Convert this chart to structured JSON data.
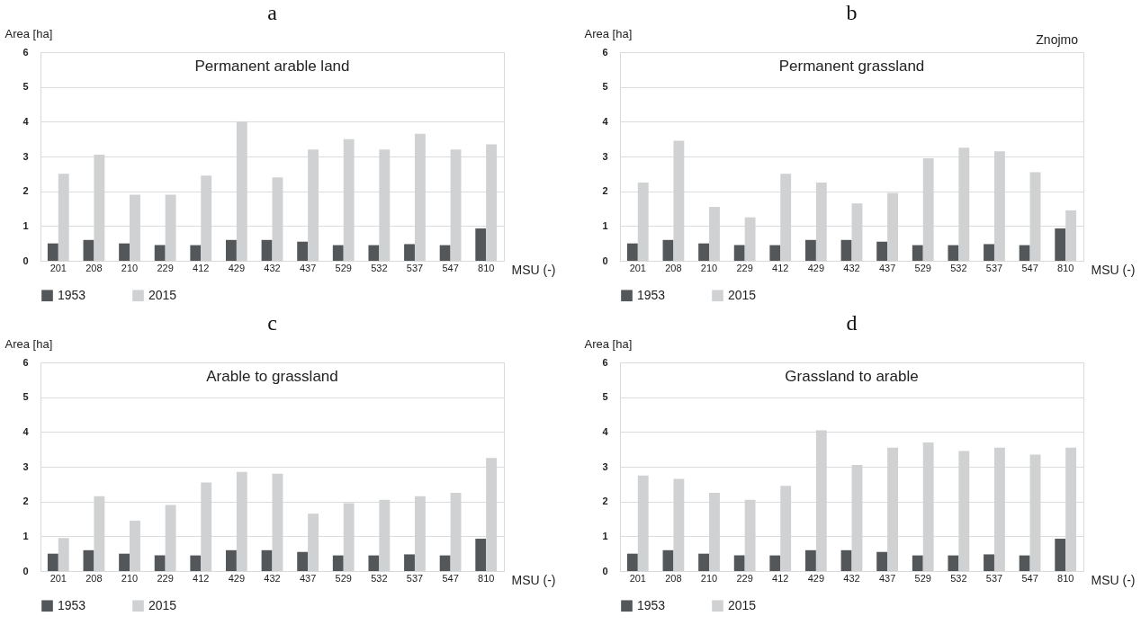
{
  "chart_data": [
    {
      "type": "bar",
      "title": "a",
      "subtitle": "Permanent arable land",
      "xlabel": "MSU (-)",
      "ylabel": "Area [ha]",
      "categories": [
        "201",
        "208",
        "210",
        "229",
        "412",
        "429",
        "432",
        "437",
        "529",
        "532",
        "537",
        "547",
        "810"
      ],
      "ylim": [
        0,
        6
      ],
      "yticks": [
        0,
        1,
        2,
        3,
        4,
        5,
        6
      ],
      "grid": "y",
      "legend": "bottom",
      "series": [
        {
          "name": "1953",
          "color": "#53575a",
          "values": [
            0.5,
            0.6,
            0.5,
            0.45,
            0.45,
            0.6,
            0.6,
            0.55,
            0.45,
            0.45,
            0.48,
            0.45,
            0.93
          ]
        },
        {
          "name": "2015",
          "color": "#d0d1d3",
          "values": [
            2.5,
            3.05,
            1.9,
            1.9,
            2.45,
            4.0,
            2.4,
            3.2,
            3.5,
            3.2,
            3.65,
            3.2,
            3.35
          ]
        }
      ]
    },
    {
      "type": "bar",
      "title": "b",
      "subtitle": "Permanent grassland",
      "xlabel": "MSU (-)",
      "ylabel": "Area [ha]",
      "annotations": [
        "Znojmo"
      ],
      "categories": [
        "201",
        "208",
        "210",
        "229",
        "412",
        "429",
        "432",
        "437",
        "529",
        "532",
        "537",
        "547",
        "810"
      ],
      "ylim": [
        0,
        6
      ],
      "yticks": [
        0,
        1,
        2,
        3,
        4,
        5,
        6
      ],
      "grid": "y",
      "legend": "bottom",
      "series": [
        {
          "name": "1953",
          "color": "#53575a",
          "values": [
            0.5,
            0.6,
            0.5,
            0.45,
            0.45,
            0.6,
            0.6,
            0.55,
            0.45,
            0.45,
            0.48,
            0.45,
            0.93
          ]
        },
        {
          "name": "2015",
          "color": "#d0d1d3",
          "values": [
            2.25,
            3.45,
            1.55,
            1.25,
            2.5,
            2.25,
            1.65,
            1.95,
            2.95,
            3.25,
            3.15,
            2.55,
            1.45
          ]
        }
      ]
    },
    {
      "type": "bar",
      "title": "c",
      "subtitle": "Arable to grassland",
      "xlabel": "MSU (-)",
      "ylabel": "Area [ha]",
      "categories": [
        "201",
        "208",
        "210",
        "229",
        "412",
        "429",
        "432",
        "437",
        "529",
        "532",
        "537",
        "547",
        "810"
      ],
      "ylim": [
        0,
        6
      ],
      "yticks": [
        0,
        1,
        2,
        3,
        4,
        5,
        6
      ],
      "grid": "y",
      "legend": "bottom",
      "series": [
        {
          "name": "1953",
          "color": "#53575a",
          "values": [
            0.5,
            0.6,
            0.5,
            0.45,
            0.45,
            0.6,
            0.6,
            0.55,
            0.45,
            0.45,
            0.48,
            0.45,
            0.93
          ]
        },
        {
          "name": "2015",
          "color": "#d0d1d3",
          "values": [
            0.95,
            2.15,
            1.45,
            1.9,
            2.55,
            2.85,
            2.8,
            1.65,
            1.95,
            2.05,
            2.15,
            2.25,
            3.25
          ]
        }
      ]
    },
    {
      "type": "bar",
      "title": "d",
      "subtitle": "Grassland to arable",
      "xlabel": "MSU (-)",
      "ylabel": "Area [ha]",
      "categories": [
        "201",
        "208",
        "210",
        "229",
        "412",
        "429",
        "432",
        "437",
        "529",
        "532",
        "537",
        "547",
        "810"
      ],
      "ylim": [
        0,
        6
      ],
      "yticks": [
        0,
        1,
        2,
        3,
        4,
        5,
        6
      ],
      "grid": "y",
      "legend": "bottom",
      "series": [
        {
          "name": "1953",
          "color": "#53575a",
          "values": [
            0.5,
            0.6,
            0.5,
            0.45,
            0.45,
            0.6,
            0.6,
            0.55,
            0.45,
            0.45,
            0.48,
            0.45,
            0.93
          ]
        },
        {
          "name": "2015",
          "color": "#d0d1d3",
          "values": [
            2.75,
            2.65,
            2.25,
            2.05,
            2.45,
            4.05,
            3.05,
            3.55,
            3.7,
            3.45,
            3.55,
            3.35,
            3.55
          ]
        }
      ]
    }
  ]
}
